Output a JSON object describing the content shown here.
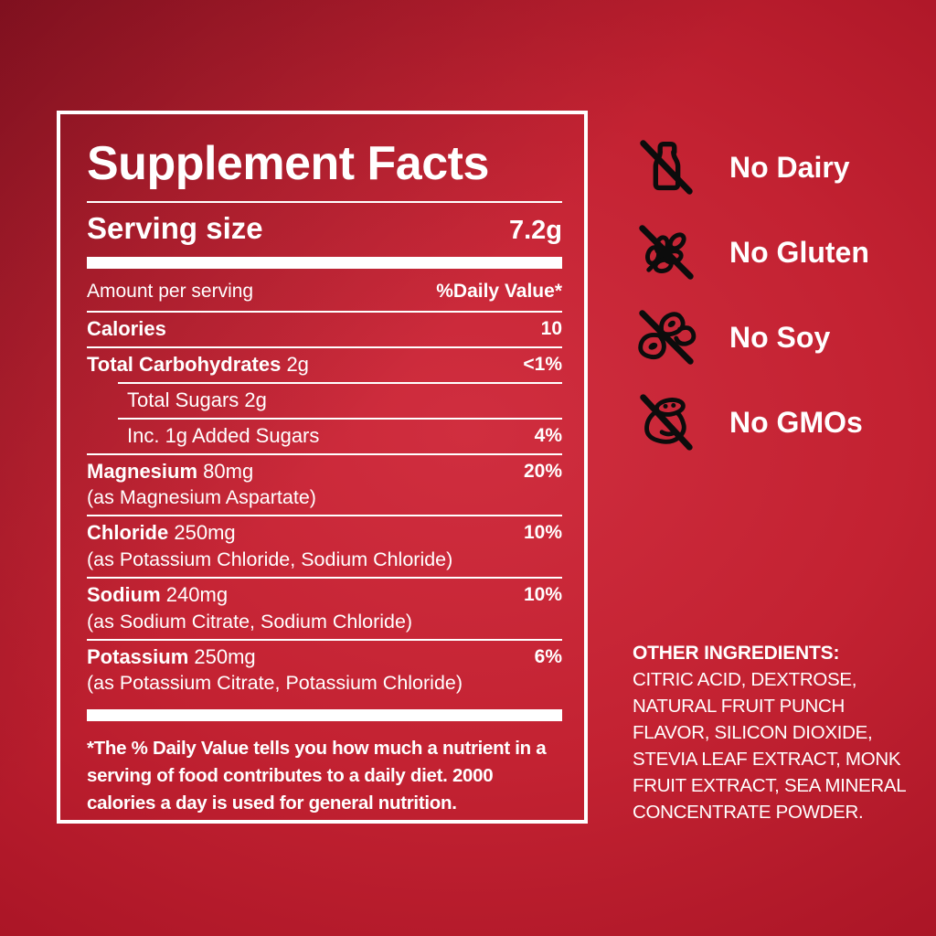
{
  "colors": {
    "background_center": "#c32232",
    "background_edge": "#8e0e1f",
    "panel_border": "#ffffff",
    "text": "#ffffff",
    "icon": "#0c0c0c"
  },
  "supplement_panel": {
    "title": "Supplement Facts",
    "serving_label": "Serving size",
    "serving_value": "7.2g",
    "amount_header": "Amount per serving",
    "dv_header": "%Daily Value*",
    "rows": [
      {
        "name": "Calories",
        "amount": "",
        "sub": "",
        "dv": "10",
        "indent": false,
        "divider": "full"
      },
      {
        "name": "Total Carbohydrates",
        "amount": "2g",
        "sub": "",
        "dv": "<1%",
        "indent": false,
        "divider": "indent"
      },
      {
        "name": "",
        "amount": "Total Sugars 2g",
        "sub": "",
        "dv": "",
        "indent": true,
        "divider": "indent"
      },
      {
        "name": "",
        "amount": "Inc. 1g Added Sugars",
        "sub": "",
        "dv": "4%",
        "indent": true,
        "divider": "full"
      },
      {
        "name": "Magnesium",
        "amount": "80mg",
        "sub": "(as Magnesium Aspartate)",
        "dv": "20%",
        "indent": false,
        "divider": "full"
      },
      {
        "name": "Chloride",
        "amount": "250mg",
        "sub": "(as Potassium Chloride, Sodium Chloride)",
        "dv": "10%",
        "indent": false,
        "divider": "full"
      },
      {
        "name": "Sodium",
        "amount": "240mg",
        "sub": "(as Sodium Citrate, Sodium Chloride)",
        "dv": "10%",
        "indent": false,
        "divider": "full"
      },
      {
        "name": "Potassium",
        "amount": "250mg",
        "sub": "(as Potassium Citrate, Potassium Chloride)",
        "dv": "6%",
        "indent": false,
        "divider": "none"
      }
    ],
    "footnote_lines": [
      "*The % Daily Value tells you how much a nutrient in a",
      "serving of food contributes to a daily diet. 2000",
      "calories a day is used for general nutrition."
    ]
  },
  "badges": [
    {
      "icon": "no-dairy-icon",
      "label": "No Dairy"
    },
    {
      "icon": "no-gluten-icon",
      "label": "No Gluten"
    },
    {
      "icon": "no-soy-icon",
      "label": "No Soy"
    },
    {
      "icon": "no-gmos-icon",
      "label": "No GMOs"
    }
  ],
  "other_ingredients": {
    "heading": "OTHER INGREDIENTS:",
    "lines": [
      "CITRIC ACID, DEXTROSE,",
      "NATURAL FRUIT PUNCH",
      "FLAVOR, SILICON DIOXIDE,",
      "STEVIA LEAF EXTRACT, MONK",
      "FRUIT EXTRACT, SEA MINERAL",
      "CONCENTRATE POWDER."
    ]
  }
}
